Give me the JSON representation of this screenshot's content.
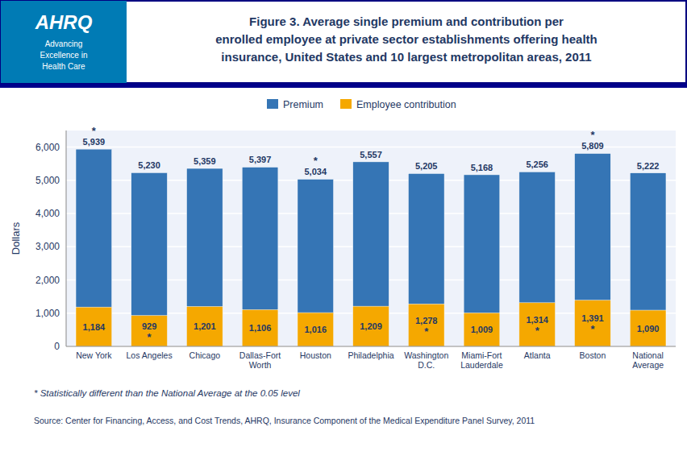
{
  "chart_data": {
    "type": "bar",
    "title": "Figure 3. Average single premium and contribution per\nenrolled employee at private sector establishments offering health\ninsurance, United States and 10 largest metropolitan areas, 2011",
    "logo": [
      "AHRQ",
      "Advancing",
      "Excellence in",
      "Health Care"
    ],
    "categories": [
      "New York",
      "Los Angeles",
      "Chicago",
      "Dallas-Fort\nWorth",
      "Houston",
      "Philadelphia",
      "Washington\nD.C.",
      "Miami-Fort\nLauderdale",
      "Atlanta",
      "Boston",
      "National\nAverage"
    ],
    "series": [
      {
        "name": "Premium",
        "color": "#3575B5",
        "values": [
          5939,
          5230,
          5359,
          5397,
          5034,
          5557,
          5205,
          5168,
          5256,
          5809,
          5222
        ],
        "value_labels": [
          "5,939",
          "5,230",
          "5,359",
          "5,397",
          "5,034",
          "5,557",
          "5,205",
          "5,168",
          "5,256",
          "5,809",
          "5,222"
        ]
      },
      {
        "name": "Employee contribution",
        "color": "#F5A800",
        "values": [
          1184,
          929,
          1201,
          1106,
          1016,
          1209,
          1278,
          1009,
          1314,
          1391,
          1090
        ],
        "value_labels": [
          "1,184",
          "929",
          "1,201",
          "1,106",
          "1,016",
          "1,209",
          "1,278",
          "1,009",
          "1,314",
          "1,391",
          "1,090"
        ]
      }
    ],
    "ylabel": "Dollars",
    "ylim": [
      0,
      6500
    ],
    "yticks": [
      0,
      {
        "value": 1000,
        "label": "1,000"
      },
      {
        "value": 2000,
        "label": "2,000"
      },
      {
        "value": 3000,
        "label": "3,000"
      },
      {
        "value": 4000,
        "label": "4,000"
      },
      {
        "value": 5000,
        "label": "5,000"
      },
      {
        "value": 6000,
        "label": "6,000"
      }
    ],
    "grid": true,
    "legend": "top",
    "data_labels": true,
    "annotations": [
      {
        "text": "*",
        "series": "Premium",
        "category": "New York"
      },
      {
        "text": "*",
        "series": "Premium",
        "category": "Houston"
      },
      {
        "text": "*",
        "series": "Premium",
        "category": "Boston"
      },
      {
        "text": "*",
        "series": "Employee contribution",
        "category": "Los Angeles"
      },
      {
        "text": "*",
        "series": "Employee contribution",
        "category": "Washington\nD.C."
      },
      {
        "text": "*",
        "series": "Employee contribution",
        "category": "Atlanta"
      },
      {
        "text": "*",
        "series": "Employee contribution",
        "category": "Boston"
      }
    ],
    "footnotes": [
      "* Statistically different than the National Average at the 0.05 level",
      "Source:  Center for Financing, Access, and Cost Trends, AHRQ, Insurance Component of the Medical Expenditure Panel Survey, 2011"
    ]
  }
}
